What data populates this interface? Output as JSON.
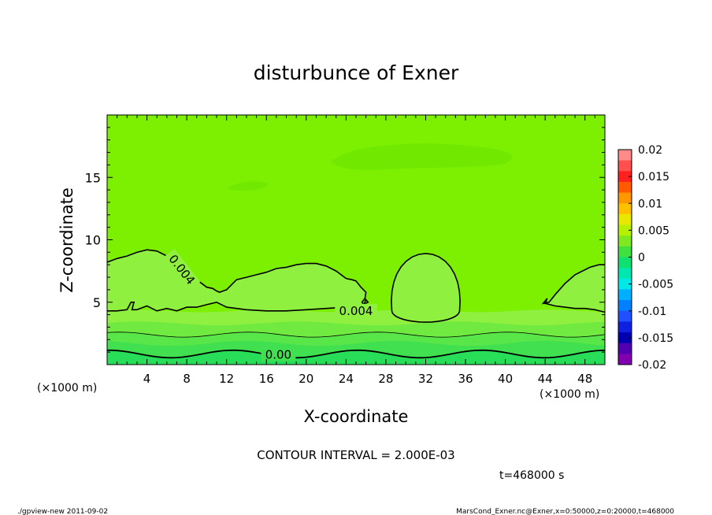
{
  "chart_data": {
    "type": "heatmap",
    "title": "disturbunce of Exner",
    "xlabel": "X-coordinate",
    "ylabel": "Z-coordinate",
    "x_unit": "(×1000 m)",
    "y_unit": "(×1000 m)",
    "xlim": [
      0,
      50
    ],
    "ylim": [
      0,
      20
    ],
    "x_ticks": [
      4,
      8,
      12,
      16,
      20,
      24,
      28,
      32,
      36,
      40,
      44,
      48
    ],
    "y_ticks": [
      5,
      10,
      15
    ],
    "contour_interval_text": "CONTOUR INTERVAL = 2.000E-03",
    "time_text": "t=468000 s",
    "contour_labels": [
      {
        "text": "0.004",
        "x": 25,
        "y": 4.3
      },
      {
        "text": "0.004",
        "x": 7.5,
        "y": 7.6
      },
      {
        "text": "0.00",
        "x": 17.2,
        "y": 0.8
      }
    ],
    "colorbar": {
      "ticks": [
        "0.02",
        "0.015",
        "0.01",
        "0.005",
        "0",
        "-0.005",
        "-0.01",
        "-0.015",
        "-0.02"
      ],
      "levels": [
        0.02,
        0.015,
        0.01,
        0.005,
        0,
        -0.005,
        -0.01,
        -0.015,
        -0.02
      ],
      "colors": [
        "#ff8a8a",
        "#ff5050",
        "#ff2020",
        "#ff5a00",
        "#ff9800",
        "#ffc000",
        "#e8e800",
        "#b4f000",
        "#80e820",
        "#40e040",
        "#10e070",
        "#00e8b0",
        "#00e8e8",
        "#00b0ff",
        "#0080ff",
        "#2050ff",
        "#1020e0",
        "#0000b0",
        "#5000b0",
        "#8000b0"
      ]
    },
    "field_colors": {
      "upper": "#7cf000",
      "mid": "#90f040",
      "band1": "#70ea40",
      "band2": "#58e648",
      "band3": "#40e050",
      "bottom": "#28de58"
    }
  },
  "footer": {
    "left": "./gpview-new   2011-09-02",
    "right": "MarsCond_Exner.nc@Exner,x=0:50000,z=0:20000,t=468000"
  }
}
